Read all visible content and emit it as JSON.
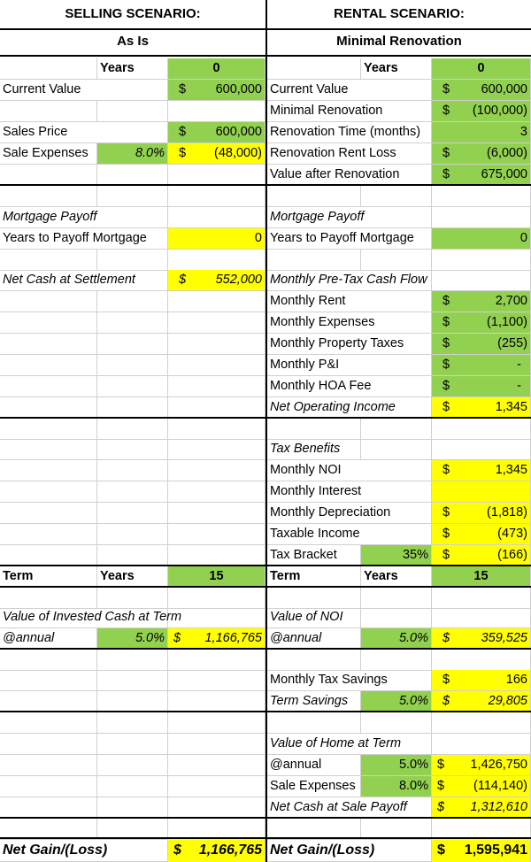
{
  "selling": {
    "title": "SELLING SCENARIO:",
    "subtitle": "As Is",
    "years_label": "Years",
    "years_value": "0",
    "current_value_label": "Current Value",
    "current_value": "600,000",
    "sales_price_label": "Sales Price",
    "sales_price": "600,000",
    "sale_expenses_label": "Sale Expenses",
    "sale_expenses_pct": "8.0%",
    "sale_expenses": "(48,000)",
    "mortgage_payoff_label": "Mortgage Payoff",
    "years_to_payoff_label": "Years to Payoff Mortgage",
    "years_to_payoff": "0",
    "net_cash_label": "Net Cash at Settlement",
    "net_cash": "552,000",
    "term_label": "Term",
    "term_years_label": "Years",
    "term_years": "15",
    "invested_label": "Value of Invested Cash at Term",
    "annual_label": "@annual",
    "annual_pct": "5.0%",
    "invested_value": "1,166,765",
    "net_gain_label": "Net Gain/(Loss)",
    "net_gain": "1,166,765"
  },
  "rental": {
    "title": "RENTAL SCENARIO:",
    "subtitle": "Minimal Renovation",
    "years_label": "Years",
    "years_value": "0",
    "current_value_label": "Current Value",
    "current_value": "600,000",
    "min_reno_label": "Minimal Renovation",
    "min_reno": "(100,000)",
    "reno_time_label": "Renovation Time (months)",
    "reno_time": "3",
    "reno_rent_loss_label": "Renovation Rent Loss",
    "reno_rent_loss": "(6,000)",
    "value_after_label": "Value after Renovation",
    "value_after": "675,000",
    "mortgage_payoff_label": "Mortgage Payoff",
    "years_to_payoff_label": "Years to Payoff Mortgage",
    "years_to_payoff": "0",
    "cashflow_label": "Monthly Pre-Tax Cash Flow",
    "rent_label": "Monthly Rent",
    "rent": "2,700",
    "expenses_label": "Monthly Expenses",
    "expenses": "(1,100)",
    "prop_tax_label": "Monthly Property Taxes",
    "prop_tax": "(255)",
    "pi_label": "Monthly P&I",
    "pi": "-",
    "hoa_label": "Monthly HOA Fee",
    "hoa": "-",
    "noi_label": "Net Operating Income",
    "noi": "1,345",
    "tax_benefits_label": "Tax Benefits",
    "monthly_noi_label": "Monthly NOI",
    "monthly_noi": "1,345",
    "interest_label": "Monthly Interest",
    "depreciation_label": "Monthly Depreciation",
    "depreciation": "(1,818)",
    "taxable_label": "Taxable Income",
    "taxable": "(473)",
    "bracket_label": "Tax Bracket",
    "bracket_pct": "35%",
    "bracket_value": "(166)",
    "term_label": "Term",
    "term_years_label": "Years",
    "term_years": "15",
    "value_noi_label": "Value of NOI",
    "annual_label": "@annual",
    "annual_pct": "5.0%",
    "value_noi": "359,525",
    "tax_savings_label": "Monthly Tax Savings",
    "tax_savings": "166",
    "term_savings_label": "Term Savings",
    "term_savings_pct": "5.0%",
    "term_savings": "29,805",
    "home_term_label": "Value of Home at Term",
    "home_annual_label": "@annual",
    "home_annual_pct": "5.0%",
    "home_value": "1,426,750",
    "home_sale_exp_label": "Sale Expenses",
    "home_sale_exp_pct": "8.0%",
    "home_sale_exp": "(114,140)",
    "net_sale_label": "Net Cash at Sale Payoff",
    "net_sale": "1,312,610",
    "net_gain_label": "Net Gain/(Loss)",
    "net_gain": "1,595,941"
  },
  "currency_symbol": "$"
}
